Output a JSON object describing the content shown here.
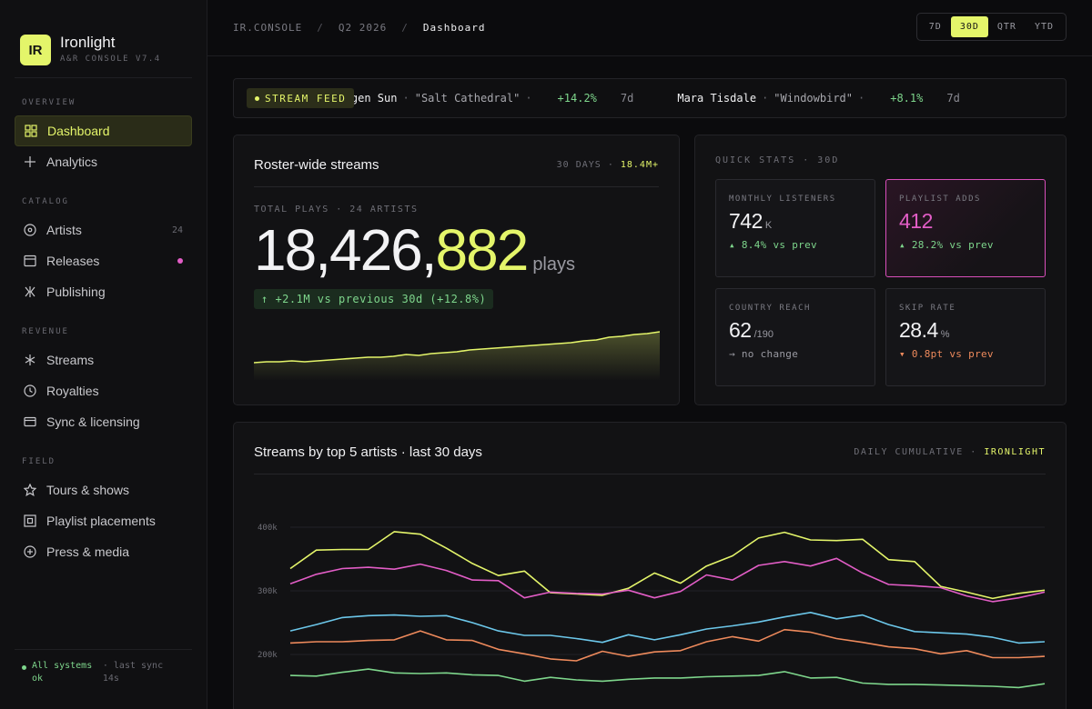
{
  "brand": {
    "logo": "IR",
    "name": "Ironlight",
    "subtitle": "A&R CONSOLE V7.4"
  },
  "sidebar": {
    "sections": [
      {
        "label": "OVERVIEW",
        "items": [
          {
            "label": "Dashboard",
            "icon": "grid-icon",
            "active": true
          },
          {
            "label": "Analytics",
            "icon": "plus-icon"
          }
        ]
      },
      {
        "label": "CATALOG",
        "items": [
          {
            "label": "Artists",
            "icon": "disc-icon",
            "count": "24"
          },
          {
            "label": "Releases",
            "icon": "album-icon",
            "dot": true
          },
          {
            "label": "Publishing",
            "icon": "pen-nib-icon"
          }
        ]
      },
      {
        "label": "REVENUE",
        "items": [
          {
            "label": "Streams",
            "icon": "asterisk-icon"
          },
          {
            "label": "Royalties",
            "icon": "clock-icon"
          },
          {
            "label": "Sync & licensing",
            "icon": "card-icon"
          }
        ]
      },
      {
        "label": "FIELD",
        "items": [
          {
            "label": "Tours & shows",
            "icon": "star-icon"
          },
          {
            "label": "Playlist placements",
            "icon": "square-target-icon"
          },
          {
            "label": "Press & media",
            "icon": "circle-plus-icon"
          }
        ]
      }
    ],
    "footer": {
      "status": "All systems ok",
      "sync": "· last sync 14s"
    }
  },
  "topbar": {
    "breadcrumb": [
      "IR.CONSOLE",
      "Q2 2026",
      "Dashboard"
    ],
    "ranges": [
      "7D",
      "30D",
      "QTR",
      "YTD"
    ],
    "active_range": "30D"
  },
  "ticker": {
    "badge": "STREAM FEED",
    "items": [
      {
        "artist": "Halogen Sun",
        "track": "\"Salt Cathedral\"",
        "delta": "+14.2%",
        "range": "7d"
      },
      {
        "artist": "Mara Tisdale",
        "track": "\"Windowbird\"",
        "delta": "+8.1%",
        "range": "7d"
      }
    ]
  },
  "streams_card": {
    "title": "Roster-wide streams",
    "meta_prefix": "30 DAYS ·",
    "meta_value": "18.4M+",
    "label": "TOTAL PLAYS · 24 ARTISTS",
    "total_a": "18,426,",
    "total_b": "882",
    "unit": "plays",
    "delta": "↑ +2.1M vs previous 30d (+12.8%)",
    "spark_accent": "#e4f56a"
  },
  "quick_stats": {
    "label": "QUICK STATS · 30D",
    "stats": [
      {
        "label": "MONTHLY LISTENERS",
        "value": "742",
        "unit": "K",
        "delta": "▴ 8.4% vs prev",
        "trend": "up"
      },
      {
        "label": "PLAYLIST ADDS",
        "value": "412",
        "unit": "",
        "delta": "▴ 28.2% vs prev",
        "trend": "up",
        "highlight": true
      },
      {
        "label": "COUNTRY REACH",
        "value": "62",
        "unit": "/190",
        "delta": "→ no change",
        "trend": "flat"
      },
      {
        "label": "SKIP RATE",
        "value": "28.4",
        "unit": "%",
        "delta": "▾ 0.8pt vs prev",
        "trend": "down"
      }
    ]
  },
  "chart_card": {
    "title": "Streams by top 5 artists · last 30 days",
    "meta_prefix": "DAILY CUMULATIVE ·",
    "meta_value": "IRONLIGHT"
  },
  "chart_data": {
    "type": "line",
    "title": "Streams by top 5 artists · last 30 days",
    "ylim": [
      140000,
      420000
    ],
    "yticks": [
      "400k",
      "300k",
      "200k"
    ],
    "ytick_values": [
      400000,
      300000,
      200000
    ],
    "grid": true,
    "x": [
      1,
      2,
      3,
      4,
      5,
      6,
      7,
      8,
      9,
      10,
      11,
      12,
      13,
      14,
      15,
      16,
      17,
      18,
      19,
      20,
      21,
      22,
      23,
      24,
      25,
      26,
      27,
      28,
      29,
      30
    ],
    "series": [
      {
        "color": "#e4f56a",
        "values": [
          335000,
          364000,
          365000,
          365000,
          393000,
          389000,
          367000,
          343000,
          324000,
          331000,
          297000,
          295000,
          293000,
          304000,
          328000,
          312000,
          339000,
          355000,
          383000,
          392000,
          380000,
          379000,
          381000,
          349000,
          346000,
          307000,
          298000,
          288000,
          296000,
          301000
        ]
      },
      {
        "color": "#e25dc6",
        "values": [
          311000,
          326000,
          335000,
          337000,
          334000,
          342000,
          332000,
          317000,
          316000,
          289000,
          298000,
          296000,
          295000,
          301000,
          289000,
          299000,
          325000,
          317000,
          340000,
          346000,
          339000,
          351000,
          328000,
          310000,
          308000,
          305000,
          292000,
          283000,
          289000,
          298000
        ]
      },
      {
        "color": "#6cc7ea",
        "values": [
          237000,
          247000,
          258000,
          261000,
          262000,
          260000,
          261000,
          250000,
          237000,
          230000,
          230000,
          225000,
          219000,
          231000,
          223000,
          231000,
          240000,
          245000,
          251000,
          259000,
          266000,
          256000,
          262000,
          247000,
          236000,
          234000,
          232000,
          227000,
          218000,
          220000
        ]
      },
      {
        "color": "#ee8a5c",
        "values": [
          218000,
          220000,
          220000,
          222000,
          223000,
          237000,
          223000,
          222000,
          208000,
          201000,
          193000,
          190000,
          205000,
          197000,
          204000,
          206000,
          220000,
          228000,
          221000,
          239000,
          235000,
          225000,
          219000,
          212000,
          209000,
          201000,
          206000,
          195000,
          195000,
          197000
        ]
      },
      {
        "color": "#7ed68c",
        "values": [
          167000,
          166000,
          172000,
          177000,
          171000,
          170000,
          171000,
          168000,
          167000,
          158000,
          164000,
          160000,
          158000,
          161000,
          163000,
          163000,
          165000,
          166000,
          167000,
          173000,
          163000,
          164000,
          155000,
          153000,
          153000,
          152000,
          151000,
          150000,
          148000,
          154000
        ]
      }
    ]
  },
  "spark_data": [
    46,
    47,
    47,
    48,
    47,
    48,
    49,
    50,
    51,
    52,
    52,
    53,
    55,
    54,
    56,
    57,
    58,
    60,
    61,
    62,
    63,
    64,
    65,
    66,
    67,
    68,
    70,
    71,
    74,
    75,
    77,
    78,
    80
  ]
}
